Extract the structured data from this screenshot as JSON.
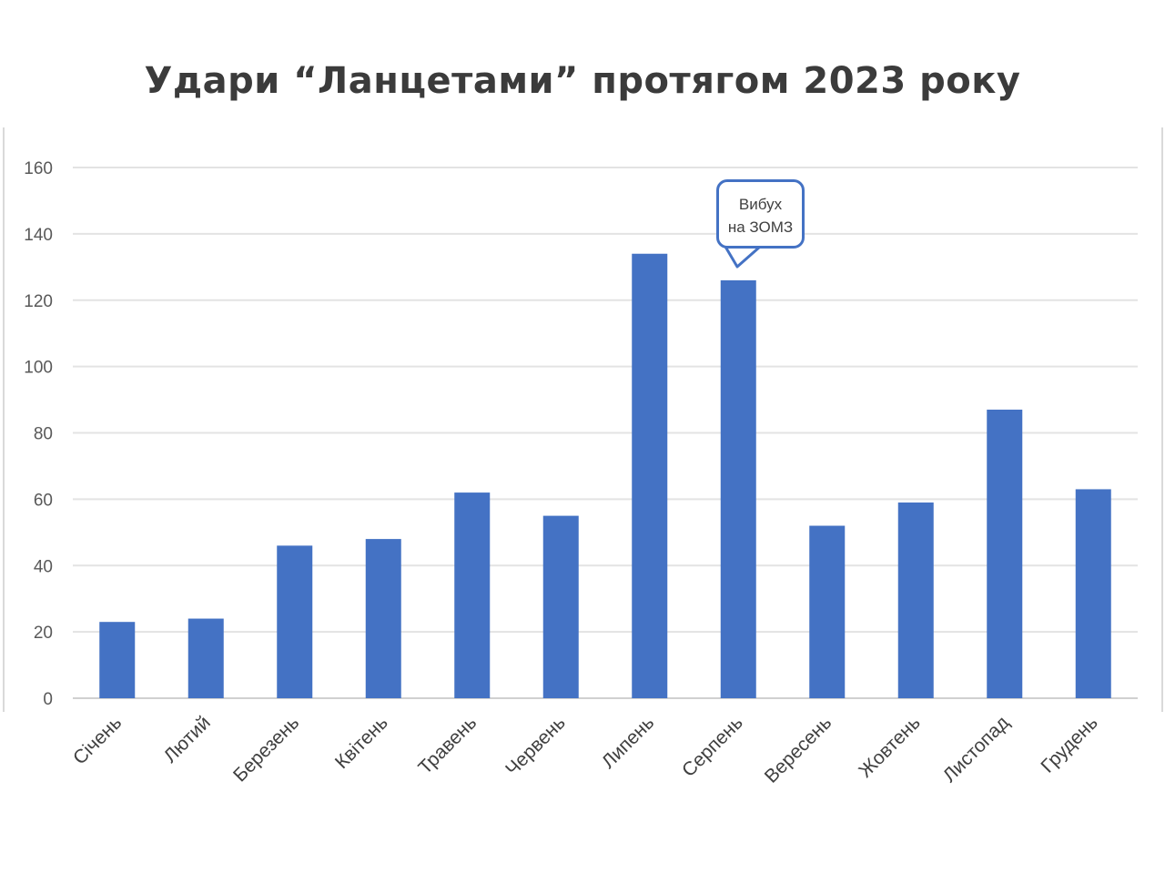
{
  "chart_data": {
    "type": "bar",
    "title": "Удари “Ланцетами” протягом 2023 року",
    "categories": [
      "Січень",
      "Лютий",
      "Березень",
      "Квітень",
      "Травень",
      "Червень",
      "Липень",
      "Серпень",
      "Вересень",
      "Жовтень",
      "Листопад",
      "Грудень"
    ],
    "values": [
      23,
      24,
      46,
      48,
      62,
      55,
      134,
      126,
      52,
      59,
      87,
      63
    ],
    "ylim": [
      0,
      160
    ],
    "yticks": [
      0,
      20,
      40,
      60,
      80,
      100,
      120,
      140,
      160
    ],
    "xlabel": "",
    "ylabel": "",
    "grid": true,
    "legend": "none",
    "bar_color": "#4472c4",
    "annotation": {
      "category": "Серпень",
      "lines": [
        "Вибух",
        "на ЗОМЗ"
      ]
    }
  }
}
